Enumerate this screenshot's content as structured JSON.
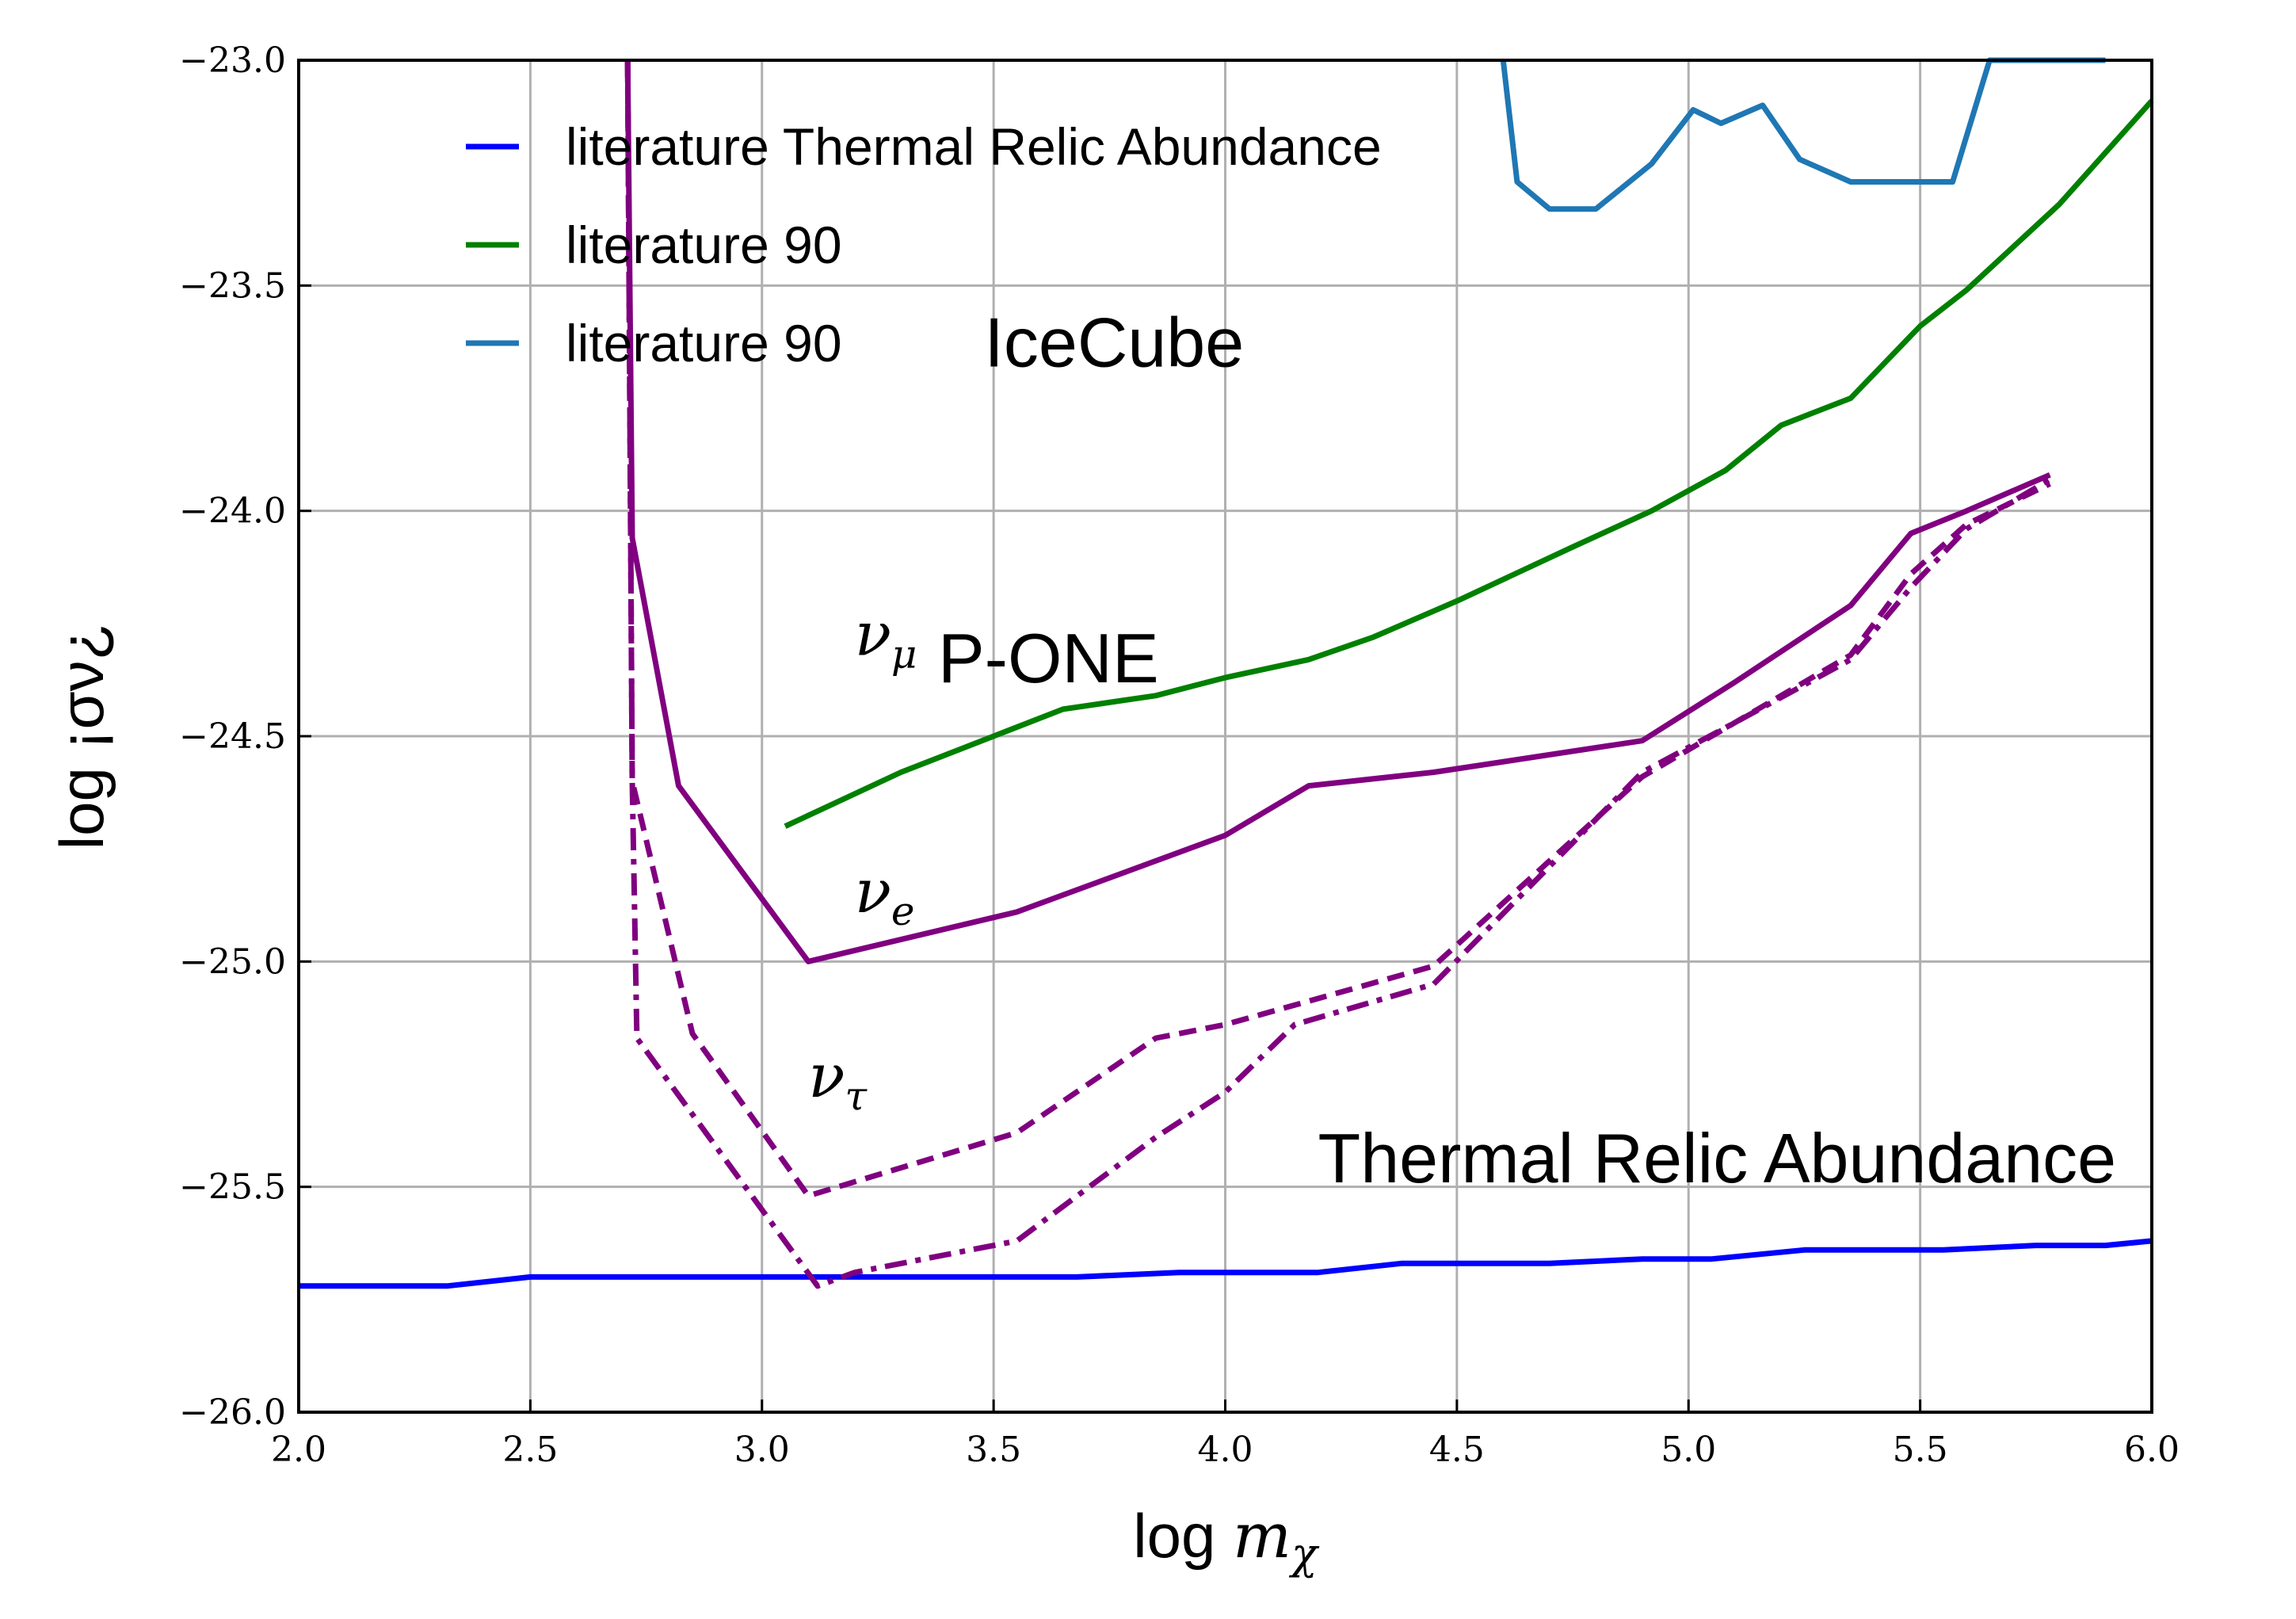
{
  "chart_data": {
    "type": "line",
    "xlabel_prefix": "log ",
    "xlabel_math": "m",
    "xlabel_sub": "χ",
    "ylabel": "log ¡σν¿",
    "xlim": [
      2.0,
      6.0
    ],
    "ylim": [
      -26.0,
      -23.0
    ],
    "xticks": [
      "2.0",
      "2.5",
      "3.0",
      "3.5",
      "4.0",
      "4.5",
      "5.0",
      "5.5",
      "6.0"
    ],
    "yticks": [
      "−26.0",
      "−25.5",
      "−25.0",
      "−24.5",
      "−24.0",
      "−23.5",
      "−23.0"
    ],
    "grid": true,
    "legend_position": "upper-left",
    "series": [
      {
        "name": "literature Thermal Relic Abundance",
        "color": "#0000ff",
        "style": "solid",
        "in_legend": true,
        "x": [
          2.0,
          2.32,
          2.5,
          2.7,
          3.0,
          3.2,
          3.5,
          3.68,
          3.9,
          4.0,
          4.2,
          4.38,
          4.5,
          4.7,
          4.9,
          5.05,
          5.25,
          5.38,
          5.55,
          5.75,
          5.9,
          6.0
        ],
        "y": [
          -25.72,
          -25.72,
          -25.7,
          -25.7,
          -25.7,
          -25.7,
          -25.7,
          -25.7,
          -25.69,
          -25.69,
          -25.69,
          -25.67,
          -25.67,
          -25.67,
          -25.66,
          -25.66,
          -25.64,
          -25.64,
          -25.64,
          -25.63,
          -25.63,
          -25.62
        ]
      },
      {
        "name": "literature 90",
        "color": "#008000",
        "style": "solid",
        "in_legend": true,
        "x": [
          3.05,
          3.3,
          3.5,
          3.65,
          3.85,
          4.0,
          4.18,
          4.32,
          4.5,
          4.75,
          4.92,
          5.08,
          5.2,
          5.35,
          5.5,
          5.6,
          5.8,
          6.0
        ],
        "y": [
          -24.7,
          -24.58,
          -24.5,
          -24.44,
          -24.41,
          -24.37,
          -24.33,
          -24.28,
          -24.2,
          -24.08,
          -24.0,
          -23.91,
          -23.81,
          -23.75,
          -23.59,
          -23.51,
          -23.32,
          -23.09
        ]
      },
      {
        "name": "literature 90",
        "color": "#1f77b4",
        "style": "solid",
        "in_legend": true,
        "x": [
          4.6,
          4.63,
          4.7,
          4.8,
          4.92,
          5.01,
          5.07,
          5.16,
          5.24,
          5.35,
          5.45,
          5.57,
          5.65,
          5.8,
          5.9
        ],
        "y": [
          -23.0,
          -23.27,
          -23.33,
          -23.33,
          -23.23,
          -23.11,
          -23.14,
          -23.1,
          -23.22,
          -23.27,
          -23.27,
          -23.27,
          -23.0,
          -23.0,
          -23.0
        ]
      },
      {
        "color": "#800080",
        "style": "solid",
        "in_legend": false,
        "x": [
          2.71,
          2.72,
          2.82,
          3.1,
          3.55,
          4.0,
          4.18,
          4.45,
          4.9,
          5.1,
          5.35,
          5.48,
          5.6,
          5.78
        ],
        "y": [
          -23.0,
          -24.06,
          -24.61,
          -25.0,
          -24.89,
          -24.72,
          -24.61,
          -24.58,
          -24.51,
          -24.38,
          -24.21,
          -24.05,
          -24.0,
          -23.92
        ]
      },
      {
        "color": "#800080",
        "style": "dashed",
        "in_legend": false,
        "x": [
          2.71,
          2.72,
          2.85,
          3.1,
          3.55,
          3.85,
          4.0,
          4.45,
          4.9,
          5.1,
          5.35,
          5.48,
          5.6,
          5.78
        ],
        "y": [
          -23.0,
          -24.6,
          -25.16,
          -25.52,
          -25.38,
          -25.17,
          -25.14,
          -25.01,
          -24.59,
          -24.47,
          -24.32,
          -24.14,
          -24.03,
          -23.94
        ]
      },
      {
        "color": "#800080",
        "style": "dashdot",
        "in_legend": false,
        "x": [
          2.71,
          2.72,
          2.73,
          3.12,
          3.2,
          3.55,
          3.85,
          4.0,
          4.15,
          4.45,
          4.9,
          5.1,
          5.35,
          5.48,
          5.6,
          5.78
        ],
        "y": [
          -23.0,
          -24.6,
          -25.17,
          -25.72,
          -25.69,
          -25.62,
          -25.39,
          -25.29,
          -25.14,
          -25.05,
          -24.58,
          -24.47,
          -24.33,
          -24.17,
          -24.04,
          -23.93
        ]
      }
    ],
    "annotations": [
      {
        "text": "IceCube",
        "x": 3.48,
        "y": -23.68,
        "kind": "text"
      },
      {
        "text": "P-ONE",
        "x": 3.38,
        "y": -24.38,
        "kind": "text"
      },
      {
        "text": "Thermal Relic Abundance",
        "x": 4.2,
        "y": -25.49,
        "kind": "text"
      },
      {
        "nu": "ν",
        "sub": "μ",
        "x": 3.2,
        "y": -24.32,
        "kind": "nu"
      },
      {
        "nu": "ν",
        "sub": "e",
        "x": 3.2,
        "y": -24.89,
        "kind": "nu"
      },
      {
        "nu": "ν",
        "sub": "τ",
        "x": 3.1,
        "y": -25.3,
        "kind": "nu"
      }
    ]
  }
}
